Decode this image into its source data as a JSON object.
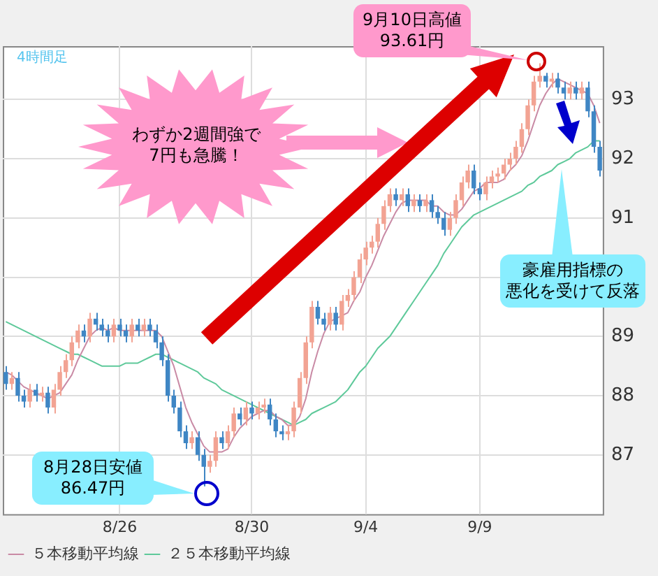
{
  "chart_data": {
    "type": "candlestick",
    "categories": [
      null,
      null,
      null,
      null,
      null,
      null,
      null,
      null,
      null,
      null,
      null,
      null,
      null,
      null,
      null,
      null,
      null,
      null,
      null,
      "8/26",
      null,
      null,
      null,
      null,
      null,
      null,
      null,
      null,
      null,
      null,
      null,
      null,
      null,
      null,
      null,
      null,
      null,
      null,
      null,
      null,
      null,
      "8/30",
      null,
      null,
      null,
      null,
      null,
      null,
      null,
      null,
      null,
      null,
      null,
      null,
      null,
      null,
      null,
      null,
      null,
      null,
      "9/4",
      null,
      null,
      null,
      null,
      null,
      null,
      null,
      null,
      null,
      null,
      null,
      null,
      null,
      null,
      null,
      null,
      null,
      null,
      "9/9",
      null,
      null,
      null,
      null,
      null,
      null,
      null,
      null,
      null,
      null,
      null,
      null,
      null,
      null,
      null,
      null,
      null,
      null,
      null,
      null
    ],
    "ohlc": [
      [
        88.4,
        88.5,
        88.1,
        88.2
      ],
      [
        88.2,
        88.4,
        88.1,
        88.3
      ],
      [
        88.3,
        88.4,
        87.9,
        88.0
      ],
      [
        88.0,
        88.1,
        87.8,
        87.9
      ],
      [
        87.9,
        88.2,
        87.8,
        88.1
      ],
      [
        88.1,
        88.2,
        87.9,
        88.0
      ],
      [
        88.0,
        88.15,
        87.9,
        88.05
      ],
      [
        88.05,
        88.15,
        87.7,
        87.8
      ],
      [
        87.8,
        88.2,
        87.7,
        88.1
      ],
      [
        88.1,
        88.5,
        88.0,
        88.4
      ],
      [
        88.4,
        88.7,
        88.3,
        88.6
      ],
      [
        88.6,
        89.0,
        88.5,
        88.9
      ],
      [
        88.9,
        89.2,
        88.8,
        89.1
      ],
      [
        89.1,
        89.2,
        88.9,
        89.0
      ],
      [
        89.0,
        89.4,
        88.9,
        89.3
      ],
      [
        89.3,
        89.4,
        89.1,
        89.2
      ],
      [
        89.2,
        89.3,
        89.0,
        89.1
      ],
      [
        89.1,
        89.2,
        88.9,
        89.0
      ],
      [
        89.0,
        89.3,
        88.9,
        89.2
      ],
      [
        89.2,
        89.3,
        89.0,
        89.1
      ],
      [
        89.1,
        89.2,
        88.9,
        89.0
      ],
      [
        89.0,
        89.3,
        88.9,
        89.2
      ],
      [
        89.2,
        89.3,
        89.0,
        89.1
      ],
      [
        89.1,
        89.3,
        89.0,
        89.2
      ],
      [
        89.2,
        89.3,
        89.0,
        89.1
      ],
      [
        89.1,
        89.2,
        88.8,
        88.9
      ],
      [
        88.9,
        89.0,
        88.5,
        88.6
      ],
      [
        88.6,
        88.7,
        87.9,
        88.0
      ],
      [
        88.0,
        88.1,
        87.7,
        87.8
      ],
      [
        87.8,
        87.9,
        87.3,
        87.4
      ],
      [
        87.4,
        87.5,
        87.1,
        87.2
      ],
      [
        87.2,
        87.4,
        87.1,
        87.3
      ],
      [
        87.3,
        87.4,
        86.9,
        87.0
      ],
      [
        87.0,
        87.1,
        86.47,
        86.8
      ],
      [
        86.8,
        87.0,
        86.7,
        86.9
      ],
      [
        86.9,
        87.4,
        86.8,
        87.3
      ],
      [
        87.3,
        87.4,
        87.1,
        87.2
      ],
      [
        87.2,
        87.5,
        87.1,
        87.4
      ],
      [
        87.4,
        87.8,
        87.3,
        87.7
      ],
      [
        87.7,
        87.8,
        87.5,
        87.6
      ],
      [
        87.6,
        87.9,
        87.5,
        87.8
      ],
      [
        87.8,
        87.9,
        87.6,
        87.7
      ],
      [
        87.7,
        87.9,
        87.6,
        87.8
      ],
      [
        87.8,
        87.95,
        87.7,
        87.85
      ],
      [
        87.85,
        87.95,
        87.5,
        87.6
      ],
      [
        87.6,
        87.7,
        87.3,
        87.4
      ],
      [
        87.4,
        87.5,
        87.25,
        87.35
      ],
      [
        87.35,
        87.5,
        87.25,
        87.4
      ],
      [
        87.4,
        87.9,
        87.3,
        87.8
      ],
      [
        87.8,
        88.4,
        87.7,
        88.3
      ],
      [
        88.3,
        89.0,
        88.2,
        88.9
      ],
      [
        88.9,
        89.6,
        88.8,
        89.5
      ],
      [
        89.5,
        89.6,
        89.2,
        89.3
      ],
      [
        89.3,
        89.4,
        89.1,
        89.2
      ],
      [
        89.2,
        89.5,
        89.1,
        89.4
      ],
      [
        89.4,
        89.5,
        89.1,
        89.2
      ],
      [
        89.2,
        89.7,
        89.1,
        89.6
      ],
      [
        89.6,
        89.8,
        89.5,
        89.7
      ],
      [
        89.7,
        90.1,
        89.6,
        90.0
      ],
      [
        90.0,
        90.4,
        89.9,
        90.3
      ],
      [
        90.3,
        90.6,
        90.2,
        90.5
      ],
      [
        90.5,
        90.7,
        90.4,
        90.6
      ],
      [
        90.6,
        91.0,
        90.5,
        90.9
      ],
      [
        90.9,
        91.3,
        90.8,
        91.2
      ],
      [
        91.2,
        91.5,
        91.1,
        91.4
      ],
      [
        91.4,
        91.5,
        91.2,
        91.3
      ],
      [
        91.3,
        91.5,
        91.2,
        91.4
      ],
      [
        91.4,
        91.5,
        91.1,
        91.2
      ],
      [
        91.2,
        91.4,
        91.1,
        91.3
      ],
      [
        91.3,
        91.4,
        91.1,
        91.2
      ],
      [
        91.2,
        91.4,
        91.1,
        91.3
      ],
      [
        91.3,
        91.4,
        91.0,
        91.1
      ],
      [
        91.1,
        91.2,
        90.9,
        91.0
      ],
      [
        91.0,
        91.1,
        90.7,
        90.8
      ],
      [
        90.8,
        91.1,
        90.7,
        91.0
      ],
      [
        91.0,
        91.4,
        90.9,
        91.3
      ],
      [
        91.3,
        91.7,
        91.2,
        91.6
      ],
      [
        91.6,
        91.9,
        91.5,
        91.8
      ],
      [
        91.8,
        91.9,
        91.4,
        91.5
      ],
      [
        91.5,
        91.6,
        91.3,
        91.4
      ],
      [
        91.4,
        91.7,
        91.3,
        91.6
      ],
      [
        91.6,
        91.8,
        91.5,
        91.7
      ],
      [
        91.7,
        91.85,
        91.6,
        91.75
      ],
      [
        91.75,
        92.0,
        91.65,
        91.9
      ],
      [
        91.9,
        92.1,
        91.8,
        92.0
      ],
      [
        92.0,
        92.3,
        91.9,
        92.2
      ],
      [
        92.2,
        92.6,
        92.1,
        92.5
      ],
      [
        92.5,
        93.0,
        92.4,
        92.9
      ],
      [
        92.9,
        93.4,
        92.8,
        93.3
      ],
      [
        93.3,
        93.61,
        93.2,
        93.4
      ],
      [
        93.4,
        93.45,
        93.2,
        93.3
      ],
      [
        93.3,
        93.45,
        93.2,
        93.35
      ],
      [
        93.35,
        93.45,
        93.1,
        93.2
      ],
      [
        93.2,
        93.3,
        93.0,
        93.1
      ],
      [
        93.1,
        93.3,
        93.0,
        93.2
      ],
      [
        93.2,
        93.3,
        93.0,
        93.1
      ],
      [
        93.1,
        93.3,
        93.0,
        93.2
      ],
      [
        93.2,
        93.3,
        92.7,
        92.8
      ],
      [
        92.8,
        92.9,
        92.1,
        92.2
      ],
      [
        92.2,
        92.3,
        91.7,
        91.8
      ]
    ],
    "colors": [
      "#3f86c4",
      "#f2a393",
      "#3f86c4",
      "#3f86c4",
      "#f2a393",
      "#3f86c4",
      "#f2a393",
      "#3f86c4",
      "#f2a393",
      "#f2a393",
      "#f2a393",
      "#f2a393",
      "#f2a393",
      "#3f86c4",
      "#f2a393",
      "#3f86c4",
      "#3f86c4",
      "#3f86c4",
      "#f2a393",
      "#3f86c4",
      "#3f86c4",
      "#f2a393",
      "#3f86c4",
      "#f2a393",
      "#3f86c4",
      "#3f86c4",
      "#3f86c4",
      "#3f86c4",
      "#3f86c4",
      "#3f86c4",
      "#3f86c4",
      "#f2a393",
      "#3f86c4",
      "#3f86c4",
      "#f2a393",
      "#f2a393",
      "#3f86c4",
      "#f2a393",
      "#f2a393",
      "#3f86c4",
      "#f2a393",
      "#3f86c4",
      "#f2a393",
      "#f2a393",
      "#3f86c4",
      "#3f86c4",
      "#3f86c4",
      "#f2a393",
      "#f2a393",
      "#f2a393",
      "#f2a393",
      "#f2a393",
      "#3f86c4",
      "#3f86c4",
      "#f2a393",
      "#3f86c4",
      "#f2a393",
      "#f2a393",
      "#f2a393",
      "#f2a393",
      "#f2a393",
      "#f2a393",
      "#f2a393",
      "#f2a393",
      "#f2a393",
      "#3f86c4",
      "#f2a393",
      "#3f86c4",
      "#f2a393",
      "#3f86c4",
      "#f2a393",
      "#3f86c4",
      "#3f86c4",
      "#3f86c4",
      "#f2a393",
      "#f2a393",
      "#f2a393",
      "#f2a393",
      "#3f86c4",
      "#3f86c4",
      "#f2a393",
      "#f2a393",
      "#f2a393",
      "#f2a393",
      "#f2a393",
      "#f2a393",
      "#f2a393",
      "#f2a393",
      "#f2a393",
      "#f2a393",
      "#3f86c4",
      "#f2a393",
      "#3f86c4",
      "#3f86c4",
      "#f2a393",
      "#3f86c4",
      "#f2a393",
      "#3f86c4",
      "#3f86c4",
      "#3f86c4"
    ],
    "series": [
      {
        "type": "line",
        "name": "５本移動平均線",
        "color": "#c98aa5",
        "values": [
          88.4,
          88.35,
          88.25,
          88.15,
          88.1,
          88.05,
          88.0,
          87.95,
          88.0,
          88.05,
          88.2,
          88.35,
          88.6,
          88.8,
          89.0,
          89.1,
          89.15,
          89.1,
          89.15,
          89.1,
          89.1,
          89.1,
          89.1,
          89.1,
          89.1,
          89.1,
          89.0,
          88.75,
          88.5,
          88.15,
          87.8,
          87.55,
          87.35,
          87.15,
          87.05,
          87.05,
          87.05,
          87.1,
          87.3,
          87.45,
          87.55,
          87.65,
          87.7,
          87.75,
          87.75,
          87.65,
          87.6,
          87.5,
          87.5,
          87.65,
          87.95,
          88.4,
          88.75,
          89.05,
          89.25,
          89.3,
          89.35,
          89.4,
          89.6,
          89.75,
          90.0,
          90.2,
          90.45,
          90.7,
          90.9,
          91.1,
          91.25,
          91.3,
          91.3,
          91.3,
          91.3,
          91.2,
          91.2,
          91.1,
          91.05,
          91.05,
          91.15,
          91.3,
          91.45,
          91.5,
          91.6,
          91.6,
          91.6,
          91.65,
          91.8,
          91.9,
          92.05,
          92.3,
          92.6,
          92.9,
          93.1,
          93.25,
          93.35,
          93.3,
          93.25,
          93.2,
          93.15,
          93.1,
          92.9,
          92.6
        ]
      },
      {
        "type": "line",
        "name": "２５本移動平均線",
        "color": "#5ec99a",
        "values": [
          89.25,
          89.2,
          89.15,
          89.1,
          89.05,
          89.0,
          88.95,
          88.9,
          88.85,
          88.8,
          88.75,
          88.7,
          88.7,
          88.65,
          88.6,
          88.55,
          88.5,
          88.5,
          88.5,
          88.5,
          88.55,
          88.55,
          88.55,
          88.6,
          88.65,
          88.7,
          88.7,
          88.65,
          88.6,
          88.55,
          88.5,
          88.45,
          88.4,
          88.3,
          88.25,
          88.2,
          88.1,
          88.05,
          88.0,
          87.95,
          87.9,
          87.85,
          87.8,
          87.75,
          87.7,
          87.65,
          87.6,
          87.55,
          87.5,
          87.55,
          87.6,
          87.7,
          87.75,
          87.8,
          87.85,
          87.9,
          88.0,
          88.1,
          88.25,
          88.4,
          88.5,
          88.65,
          88.8,
          88.9,
          89.0,
          89.15,
          89.3,
          89.45,
          89.6,
          89.75,
          89.9,
          90.05,
          90.2,
          90.4,
          90.55,
          90.7,
          90.85,
          90.95,
          91.05,
          91.1,
          91.15,
          91.2,
          91.25,
          91.3,
          91.35,
          91.4,
          91.45,
          91.55,
          91.6,
          91.7,
          91.75,
          91.8,
          91.9,
          91.95,
          92.0,
          92.1,
          92.15,
          92.2,
          92.3,
          92.3
        ]
      }
    ],
    "ylim": [
      86.0,
      93.9
    ],
    "yticks": [
      87,
      88,
      89,
      {
        "value": 90,
        "label": null
      },
      91,
      92,
      93
    ],
    "grid": true,
    "legend": "bottom left",
    "annotations": [
      "4時間足",
      "わずか2週間強で7円も急騰！",
      "9月10日高値93.61円",
      "8月28日安値86.47円",
      "豪雇用指標の",
      "悪化を受けて反落"
    ]
  }
}
